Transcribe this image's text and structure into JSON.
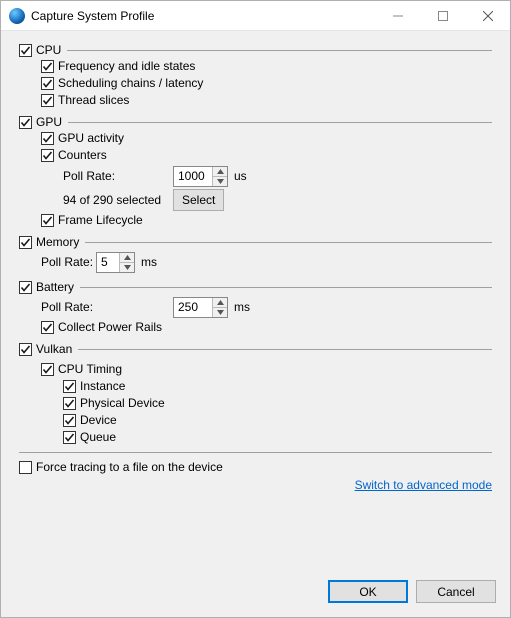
{
  "window": {
    "title": "Capture System Profile"
  },
  "cpu": {
    "label": "CPU",
    "checked": true,
    "freq_idle": {
      "label": "Frequency and idle states",
      "checked": true
    },
    "scheduling": {
      "label": "Scheduling chains / latency",
      "checked": true
    },
    "thread_slices": {
      "label": "Thread slices",
      "checked": true
    }
  },
  "gpu": {
    "label": "GPU",
    "checked": true,
    "activity": {
      "label": "GPU activity",
      "checked": true
    },
    "counters": {
      "label": "Counters",
      "checked": true,
      "poll_label": "Poll Rate:",
      "poll_value": "1000",
      "poll_unit": "us",
      "selected_text": "94 of 290 selected",
      "select_btn": "Select"
    },
    "frame_lifecycle": {
      "label": "Frame Lifecycle",
      "checked": true
    }
  },
  "memory": {
    "label": "Memory",
    "checked": true,
    "poll_label": "Poll Rate:",
    "poll_value": "5",
    "poll_unit": "ms"
  },
  "battery": {
    "label": "Battery",
    "checked": true,
    "poll_label": "Poll Rate:",
    "poll_value": "250",
    "poll_unit": "ms",
    "power_rails": {
      "label": "Collect Power Rails",
      "checked": true
    }
  },
  "vulkan": {
    "label": "Vulkan",
    "checked": true,
    "cpu_timing": {
      "label": "CPU Timing",
      "checked": true,
      "instance": {
        "label": "Instance",
        "checked": true
      },
      "physical_device": {
        "label": "Physical Device",
        "checked": true
      },
      "device": {
        "label": "Device",
        "checked": true
      },
      "queue": {
        "label": "Queue",
        "checked": true
      }
    }
  },
  "force_tracing": {
    "label": "Force tracing to a file on the device",
    "checked": false
  },
  "advanced_link": "Switch to advanced mode",
  "buttons": {
    "ok": "OK",
    "cancel": "Cancel"
  },
  "colors": {
    "window_bg": "#f0f0f0",
    "titlebar_bg": "#ffffff",
    "border": "#b0b0b0",
    "rule": "#a0a0a0",
    "link": "#0066cc",
    "default_btn_border": "#0078d7",
    "btn_bg": "#e1e1e1",
    "check_mark": "#1a1a1a"
  }
}
